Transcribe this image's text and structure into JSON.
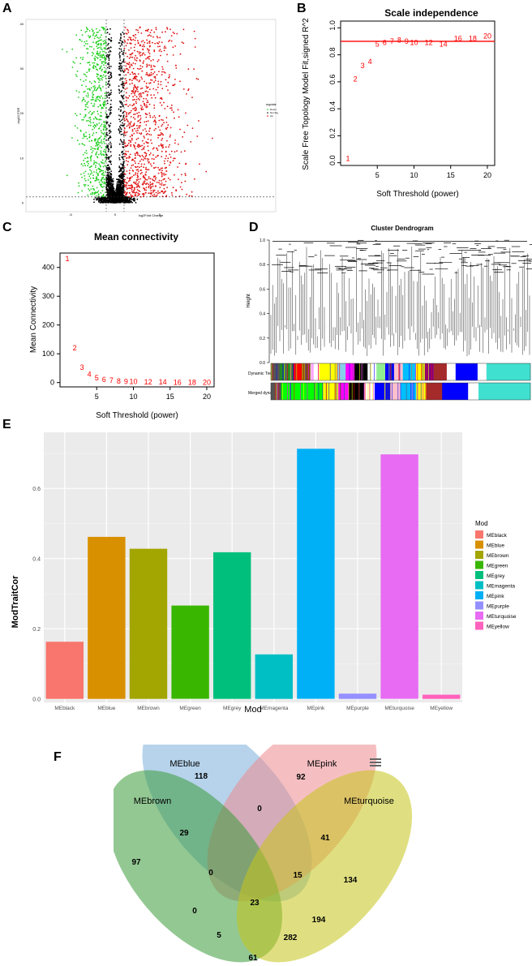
{
  "panels": {
    "a": "A",
    "b": "B",
    "c": "C",
    "d": "D",
    "e": "E",
    "f": "F"
  },
  "chart_data": [
    {
      "id": "A",
      "type": "scatter",
      "title": "",
      "xlabel": "log2Fold Change",
      "ylabel": "-log10 FDR",
      "legend_title": "regulate",
      "legend": [
        {
          "name": "Down",
          "color": "#00cc00"
        },
        {
          "name": "Not Sig",
          "color": "#000000"
        },
        {
          "name": "Up",
          "color": "#ff0000"
        }
      ],
      "x_ticks": [
        "-5",
        "0",
        "5"
      ],
      "y_ticks": [
        "0",
        "10",
        "20",
        "30",
        "40"
      ],
      "xlim": [
        -10,
        18
      ],
      "ylim": [
        -2,
        41
      ],
      "thresholds": {
        "fc": 1,
        "fdr": 1.3
      }
    },
    {
      "id": "B",
      "type": "scatter",
      "title": "Scale independence",
      "xlabel": "Soft Threshold (power)",
      "ylabel": "Scale Free Topology Model Fit,signed R^2",
      "xlim": [
        0,
        21
      ],
      "ylim": [
        -0.02,
        1.05
      ],
      "x_ticks": [
        5,
        10,
        15,
        20
      ],
      "y_ticks": [
        0.0,
        0.2,
        0.4,
        0.6,
        0.8,
        1.0
      ],
      "hline": 0.9,
      "points": [
        {
          "label": "1",
          "x": 1,
          "y": 0.03
        },
        {
          "label": "2",
          "x": 2,
          "y": 0.62
        },
        {
          "label": "3",
          "x": 3,
          "y": 0.72
        },
        {
          "label": "4",
          "x": 4,
          "y": 0.75
        },
        {
          "label": "5",
          "x": 5,
          "y": 0.88
        },
        {
          "label": "6",
          "x": 6,
          "y": 0.89
        },
        {
          "label": "7",
          "x": 7,
          "y": 0.9
        },
        {
          "label": "8",
          "x": 8,
          "y": 0.91
        },
        {
          "label": "9",
          "x": 9,
          "y": 0.9
        },
        {
          "label": "10",
          "x": 10,
          "y": 0.89
        },
        {
          "label": "12",
          "x": 12,
          "y": 0.89
        },
        {
          "label": "14",
          "x": 14,
          "y": 0.88
        },
        {
          "label": "16",
          "x": 16,
          "y": 0.92
        },
        {
          "label": "18",
          "x": 18,
          "y": 0.92
        },
        {
          "label": "20",
          "x": 20,
          "y": 0.94
        }
      ]
    },
    {
      "id": "C",
      "type": "scatter",
      "title": "Mean connectivity",
      "xlabel": "Soft Threshold (power)",
      "ylabel": "Mean Connectivity",
      "xlim": [
        0,
        21
      ],
      "ylim": [
        -15,
        450
      ],
      "x_ticks": [
        5,
        10,
        15,
        20
      ],
      "y_ticks": [
        0,
        100,
        200,
        300,
        400
      ],
      "points": [
        {
          "label": "1",
          "x": 1,
          "y": 430
        },
        {
          "label": "2",
          "x": 2,
          "y": 120
        },
        {
          "label": "3",
          "x": 3,
          "y": 52
        },
        {
          "label": "4",
          "x": 4,
          "y": 28
        },
        {
          "label": "5",
          "x": 5,
          "y": 16
        },
        {
          "label": "6",
          "x": 6,
          "y": 10
        },
        {
          "label": "7",
          "x": 7,
          "y": 7
        },
        {
          "label": "8",
          "x": 8,
          "y": 5
        },
        {
          "label": "9",
          "x": 9,
          "y": 4
        },
        {
          "label": "10",
          "x": 10,
          "y": 3
        },
        {
          "label": "12",
          "x": 12,
          "y": 2
        },
        {
          "label": "14",
          "x": 14,
          "y": 1.5
        },
        {
          "label": "16",
          "x": 16,
          "y": 1
        },
        {
          "label": "18",
          "x": 18,
          "y": 1
        },
        {
          "label": "20",
          "x": 20,
          "y": 1
        }
      ]
    },
    {
      "id": "D",
      "type": "dendrogram",
      "title": "Cluster Dendrogram",
      "ylabel": "Height",
      "ylim": [
        0.0,
        1.0
      ],
      "y_ticks": [
        "0.0",
        "0.2",
        "0.4",
        "0.6",
        "0.8",
        "1.0"
      ],
      "row_labels": [
        "Dynamic Tree Cut",
        "Merged dynamic"
      ],
      "dynamic_tree_cut": [
        {
          "color": "#555555",
          "w": 2
        },
        {
          "color": "#228b22",
          "w": 3
        },
        {
          "color": "#ff0000",
          "w": 2
        },
        {
          "color": "#8b4513",
          "w": 2
        },
        {
          "color": "#ffffff",
          "w": 2
        },
        {
          "color": "#ffff00",
          "w": 4
        },
        {
          "color": "#87ceeb",
          "w": 2
        },
        {
          "color": "#ff00ff",
          "w": 2
        },
        {
          "color": "#000000",
          "w": 3
        },
        {
          "color": "#ffffff",
          "w": 2
        },
        {
          "color": "#90ee90",
          "w": 2
        },
        {
          "color": "#0000ff",
          "w": 2
        },
        {
          "color": "#ffc0cb",
          "w": 2
        },
        {
          "color": "#00bfff",
          "w": 3
        },
        {
          "color": "#ffff00",
          "w": 2
        },
        {
          "color": "#800080",
          "w": 2
        },
        {
          "color": "#a52a2a",
          "w": 3
        },
        {
          "color": "#ffffff",
          "w": 2
        },
        {
          "color": "#0000ff",
          "w": 5
        },
        {
          "color": "#ffffff",
          "w": 2
        },
        {
          "color": "#40e0d0",
          "w": 10
        }
      ],
      "merged_dynamic": [
        {
          "color": "#555555",
          "w": 2
        },
        {
          "color": "#00ff00",
          "w": 8
        },
        {
          "color": "#ffff00",
          "w": 3
        },
        {
          "color": "#ff00ff",
          "w": 2
        },
        {
          "color": "#000000",
          "w": 3
        },
        {
          "color": "#ffffff",
          "w": 2
        },
        {
          "color": "#0000ff",
          "w": 3
        },
        {
          "color": "#ffc0cb",
          "w": 2
        },
        {
          "color": "#00bfff",
          "w": 3
        },
        {
          "color": "#ffff00",
          "w": 2
        },
        {
          "color": "#a52a2a",
          "w": 3
        },
        {
          "color": "#0000ff",
          "w": 5
        },
        {
          "color": "#ffffff",
          "w": 2
        },
        {
          "color": "#40e0d0",
          "w": 10
        }
      ]
    },
    {
      "id": "E",
      "type": "bar",
      "title": "",
      "xlabel": "Mod",
      "ylabel": "ModTraitCor",
      "ylim": [
        -0.01,
        0.76
      ],
      "y_ticks": [
        "0.0",
        "0.2",
        "0.4",
        "0.6"
      ],
      "legend_title": "Mod",
      "categories": [
        "MEblack",
        "MEblue",
        "MEbrown",
        "MEgreen",
        "MEgrey",
        "MEmagenta",
        "MEpink",
        "MEpurple",
        "MEturquoise",
        "MEyellow"
      ],
      "values": [
        0.163,
        0.462,
        0.428,
        0.266,
        0.418,
        0.127,
        0.713,
        0.015,
        0.697,
        0.012
      ],
      "colors": [
        "#F8766D",
        "#D89000",
        "#A3A500",
        "#39B600",
        "#00BF7D",
        "#00BFC4",
        "#00B0F6",
        "#9590FF",
        "#E76BF3",
        "#FF62BC"
      ]
    },
    {
      "id": "F",
      "type": "venn",
      "sets": [
        {
          "name": "MEblue",
          "color": "#7aaedb"
        },
        {
          "name": "MEpink",
          "color": "#ec8a8f"
        },
        {
          "name": "MEbrown",
          "color": "#3a9a3a"
        },
        {
          "name": "MEturquoise",
          "color": "#c4c41a"
        }
      ],
      "regions": [
        {
          "label": "118"
        },
        {
          "label": "0"
        },
        {
          "label": "92"
        },
        {
          "label": "29"
        },
        {
          "label": "41"
        },
        {
          "label": "97"
        },
        {
          "label": "0"
        },
        {
          "label": "15"
        },
        {
          "label": "134"
        },
        {
          "label": "23"
        },
        {
          "label": "0"
        },
        {
          "label": "194"
        },
        {
          "label": "5"
        },
        {
          "label": "282"
        },
        {
          "label": "61"
        }
      ]
    }
  ]
}
